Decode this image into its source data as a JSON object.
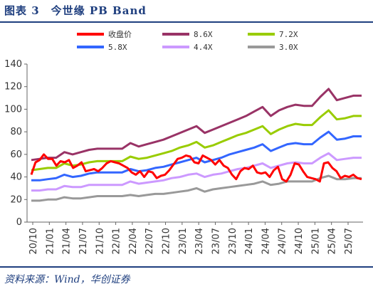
{
  "title": "图表 3　今世缘 PB Band",
  "source": "资料来源：Wind，华创证券",
  "chart_data": {
    "type": "line",
    "title": "今世缘 PB Band",
    "ylim": [
      0,
      140
    ],
    "yticks": [
      0,
      20,
      40,
      60,
      80,
      100,
      120,
      140
    ],
    "grid": false,
    "legend_position": "top",
    "x_tick_labels": [
      "20/10",
      "21/01",
      "21/04",
      "21/07",
      "21/10",
      "22/01",
      "22/04",
      "22/07",
      "22/10",
      "23/01",
      "23/04",
      "23/07",
      "23/10",
      "24/01",
      "24/04",
      "24/07",
      "24/10",
      "25/01",
      "25/04",
      "25/07"
    ],
    "x_start_tick_offset": 0,
    "n_months": 58,
    "x_months_offset": 0,
    "series": [
      {
        "name": "收盘价",
        "color": "#ff0000",
        "values": [
          42,
          53,
          55,
          60,
          56,
          56,
          50,
          54,
          53,
          55,
          48,
          50,
          53,
          45,
          46,
          47,
          45,
          48,
          52,
          54,
          53,
          52,
          50,
          48,
          44,
          42,
          45,
          40,
          45,
          44,
          39,
          41,
          42,
          46,
          51,
          56,
          57,
          59,
          58,
          53,
          52,
          59,
          57,
          55,
          51,
          55,
          50,
          48,
          42,
          38,
          45,
          48,
          47,
          50,
          44,
          43,
          44,
          40,
          46,
          49,
          38,
          36,
          42,
          52,
          51,
          45,
          40,
          39,
          38,
          36,
          52,
          53,
          48,
          45,
          39,
          41,
          40,
          42,
          39,
          38
        ]
      },
      {
        "name": "8.6X",
        "color": "#993366",
        "values": [
          55,
          56,
          57,
          57,
          62,
          60,
          62,
          64,
          65,
          65,
          65,
          65,
          70,
          67,
          69,
          71,
          73,
          76,
          79,
          82,
          85,
          79,
          82,
          85,
          88,
          91,
          94,
          98,
          102,
          94,
          99,
          102,
          104,
          103,
          103,
          111,
          118,
          108,
          110,
          112,
          112
        ]
      },
      {
        "name": "7.2X",
        "color": "#99cc00",
        "values": [
          46,
          47,
          48,
          48,
          52,
          50,
          51,
          53,
          54,
          54,
          54,
          54,
          58,
          56,
          57,
          59,
          61,
          63,
          66,
          68,
          71,
          66,
          68,
          71,
          74,
          77,
          79,
          82,
          85,
          78,
          82,
          85,
          87,
          86,
          86,
          93,
          99,
          91,
          92,
          94,
          94
        ]
      },
      {
        "name": "5.8X",
        "color": "#3366ff",
        "values": [
          37,
          37,
          38,
          39,
          42,
          40,
          41,
          43,
          44,
          44,
          44,
          44,
          47,
          45,
          46,
          48,
          49,
          51,
          53,
          55,
          57,
          53,
          55,
          57,
          60,
          62,
          64,
          66,
          69,
          63,
          66,
          69,
          70,
          69,
          69,
          75,
          80,
          73,
          74,
          76,
          76
        ]
      },
      {
        "name": "4.4X",
        "color": "#cc99ff",
        "values": [
          28,
          28,
          29,
          29,
          32,
          31,
          31,
          33,
          33,
          33,
          33,
          33,
          36,
          34,
          35,
          36,
          37,
          39,
          40,
          42,
          43,
          40,
          42,
          43,
          45,
          47,
          48,
          50,
          52,
          48,
          50,
          52,
          53,
          52,
          52,
          57,
          61,
          55,
          56,
          57,
          57
        ]
      },
      {
        "name": "3.0X",
        "color": "#999999",
        "values": [
          19,
          19,
          20,
          20,
          22,
          21,
          21,
          22,
          23,
          23,
          23,
          23,
          24,
          23,
          24,
          25,
          25,
          26,
          27,
          28,
          30,
          27,
          29,
          30,
          31,
          32,
          33,
          34,
          36,
          33,
          34,
          36,
          36,
          36,
          36,
          39,
          41,
          38,
          38,
          39,
          39
        ]
      }
    ]
  }
}
